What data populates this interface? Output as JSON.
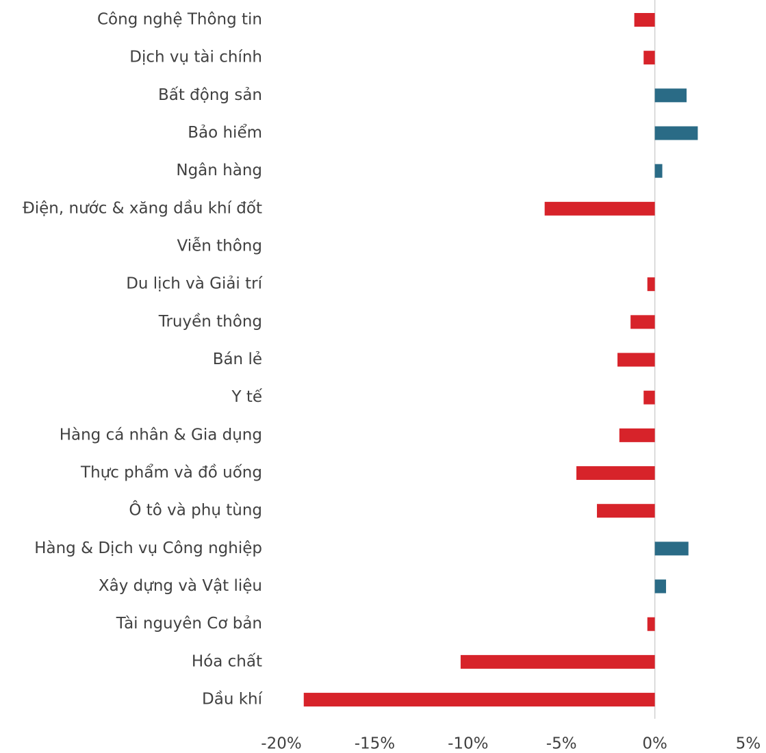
{
  "chart_data": {
    "type": "barh",
    "categories": [
      "Công nghệ Thông tin",
      "Dịch vụ tài chính",
      "Bất động sản",
      "Bảo hiểm",
      "Ngân hàng",
      "Điện, nước & xăng dầu khí đốt",
      "Viễn thông",
      "Du lịch và Giải trí",
      "Truyền thông",
      "Bán lẻ",
      "Y tế",
      "Hàng cá nhân & Gia dụng",
      "Thực phẩm và đồ uống",
      "Ô tô và phụ tùng",
      "Hàng & Dịch vụ Công nghiệp",
      "Xây dựng và Vật liệu",
      "Tài nguyên Cơ bản",
      "Hóa chất",
      "Dầu khí"
    ],
    "values": [
      -1.1,
      -0.6,
      1.7,
      2.3,
      0.4,
      -5.9,
      0,
      -0.4,
      -1.3,
      -2.0,
      -0.6,
      -1.9,
      -4.2,
      -3.1,
      1.8,
      0.6,
      -0.4,
      -10.4,
      -18.8
    ],
    "colors": [
      "#d7232a",
      "#d7232a",
      "#2a6b86",
      "#2a6b86",
      "#2a6b86",
      "#d7232a",
      "#d7232a",
      "#d7232a",
      "#d7232a",
      "#d7232a",
      "#d7232a",
      "#d7232a",
      "#d7232a",
      "#d7232a",
      "#2a6b86",
      "#2a6b86",
      "#d7232a",
      "#d7232a",
      "#d7232a"
    ],
    "xlim": [
      -20,
      5
    ],
    "xticks": [
      {
        "value": -20,
        "label": "-20%"
      },
      {
        "value": -15,
        "label": "-15%"
      },
      {
        "value": -10,
        "label": "-10%"
      },
      {
        "value": -5,
        "label": "-5%"
      },
      {
        "value": 0,
        "label": "0%"
      },
      {
        "value": 5,
        "label": "5%"
      }
    ]
  }
}
